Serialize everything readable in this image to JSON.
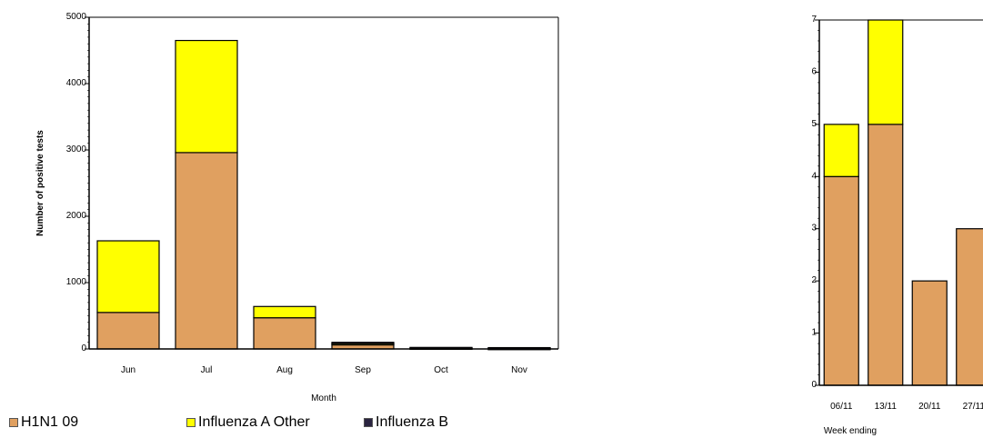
{
  "chart_data": [
    {
      "type": "bar",
      "stacked": true,
      "categories": [
        "Jun",
        "Jul",
        "Aug",
        "Sep",
        "Oct",
        "Nov"
      ],
      "series": [
        {
          "name": "H1N1 09",
          "values": [
            550,
            2960,
            470,
            70,
            15,
            10
          ],
          "color": "#E0A060"
        },
        {
          "name": "Influenza A Other",
          "values": [
            1080,
            1690,
            170,
            10,
            3,
            3
          ],
          "color": "#FFFF00"
        },
        {
          "name": "Influenza B",
          "values": [
            0,
            0,
            0,
            20,
            5,
            7
          ],
          "color": "#2A2440"
        }
      ],
      "xlabel": "Month",
      "ylabel": "Number of positive tests",
      "ylim": [
        0,
        5000
      ],
      "yticks": [
        "0",
        "1000",
        "2000",
        "3000",
        "4000",
        "5000"
      ],
      "grid": false
    },
    {
      "type": "bar",
      "stacked": true,
      "categories": [
        "06/11",
        "13/11",
        "20/11",
        "27/11"
      ],
      "series": [
        {
          "name": "H1N1 09",
          "values": [
            4,
            5,
            2,
            3
          ],
          "color": "#E0A060"
        },
        {
          "name": "Influenza A Other",
          "values": [
            1,
            2,
            0,
            0
          ],
          "color": "#FFFF00"
        }
      ],
      "xlabel": "Week ending",
      "ylim": [
        0,
        7
      ],
      "yticks": [
        "0",
        "1",
        "2",
        "3",
        "4",
        "5",
        "6",
        "7"
      ],
      "grid": false
    }
  ],
  "legend": [
    {
      "label": "H1N1 09",
      "color": "#E0A060"
    },
    {
      "label": "Influenza A Other",
      "color": "#FFFF00"
    },
    {
      "label": "Influenza B",
      "color": "#2A2440"
    }
  ]
}
